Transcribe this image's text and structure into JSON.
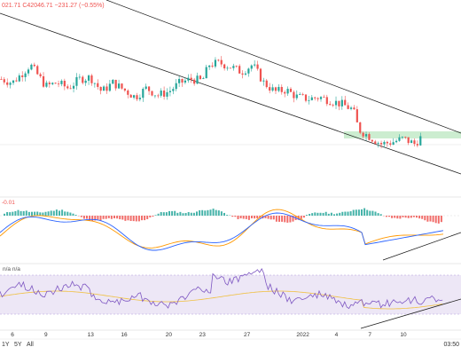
{
  "header": {
    "ohlc_text": "021.71  C42046.71  −231.27 (−0.55%)",
    "colors": {
      "up": "#26a69a",
      "down": "#ef5350",
      "text": "#ef5350"
    }
  },
  "macd_label": "-0.01",
  "rsi_label": "n/a  n/a",
  "toolbar": {
    "range_1y": "1Y",
    "range_5y": "5Y",
    "range_all": "All",
    "time": "03:50"
  },
  "x_ticks": [
    {
      "label": "6",
      "day": 0
    },
    {
      "label": "9",
      "day": 3
    },
    {
      "label": "13",
      "day": 7
    },
    {
      "label": "16",
      "day": 10
    },
    {
      "label": "20",
      "day": 14
    },
    {
      "label": "23",
      "day": 17
    },
    {
      "label": "27",
      "day": 21
    },
    {
      "label": "2022",
      "day": 26
    },
    {
      "label": "4",
      "day": 29
    },
    {
      "label": "7",
      "day": 32
    },
    {
      "label": "10",
      "day": 35
    }
  ],
  "chart_data": [
    {
      "type": "candlestick",
      "series_note_colors": {
        "channel": "#1e1e1e",
        "support_zone": "#bfe8c4"
      },
      "x_range": [
        -1.2,
        38.4
      ],
      "y_range": [
        0,
        100
      ],
      "candles_close_profile": [
        {
          "d": -1.0,
          "c": 62
        },
        {
          "d": 0.0,
          "c": 60
        },
        {
          "d": 1.0,
          "c": 66
        },
        {
          "d": 1.6,
          "c": 70
        },
        {
          "d": 2.3,
          "c": 64
        },
        {
          "d": 3.0,
          "c": 58
        },
        {
          "d": 4.0,
          "c": 60
        },
        {
          "d": 5.0,
          "c": 57
        },
        {
          "d": 6.0,
          "c": 62
        },
        {
          "d": 7.0,
          "c": 63
        },
        {
          "d": 8.0,
          "c": 55
        },
        {
          "d": 9.0,
          "c": 60
        },
        {
          "d": 10.0,
          "c": 56
        },
        {
          "d": 11.0,
          "c": 52
        },
        {
          "d": 12.0,
          "c": 57
        },
        {
          "d": 13.0,
          "c": 53
        },
        {
          "d": 14.0,
          "c": 55
        },
        {
          "d": 15.0,
          "c": 60
        },
        {
          "d": 16.0,
          "c": 62
        },
        {
          "d": 17.0,
          "c": 61
        },
        {
          "d": 17.6,
          "c": 70
        },
        {
          "d": 18.5,
          "c": 71
        },
        {
          "d": 19.5,
          "c": 69
        },
        {
          "d": 20.5,
          "c": 66
        },
        {
          "d": 21.5,
          "c": 70
        },
        {
          "d": 22.5,
          "c": 60
        },
        {
          "d": 23.5,
          "c": 55
        },
        {
          "d": 24.5,
          "c": 56
        },
        {
          "d": 25.5,
          "c": 52
        },
        {
          "d": 26.5,
          "c": 51
        },
        {
          "d": 27.5,
          "c": 52
        },
        {
          "d": 28.5,
          "c": 50
        },
        {
          "d": 29.5,
          "c": 48
        },
        {
          "d": 30.5,
          "c": 45
        },
        {
          "d": 31.0,
          "c": 34
        },
        {
          "d": 32.0,
          "c": 30
        },
        {
          "d": 33.0,
          "c": 26
        },
        {
          "d": 34.0,
          "c": 27
        },
        {
          "d": 35.0,
          "c": 29
        },
        {
          "d": 36.0,
          "c": 26
        },
        {
          "d": 36.8,
          "c": 31
        }
      ]
    },
    {
      "type": "line",
      "name_note": "MACD",
      "colors": {
        "macd": "#2962ff",
        "signal": "#ff9800",
        "hist_up": "#26a69a",
        "hist_down": "#ef5350"
      }
    },
    {
      "type": "line",
      "name_note": "RSI",
      "colors": {
        "rsi": "#7e57c2",
        "ma": "#f0c040",
        "band_fill": "#ede7f6"
      }
    }
  ]
}
